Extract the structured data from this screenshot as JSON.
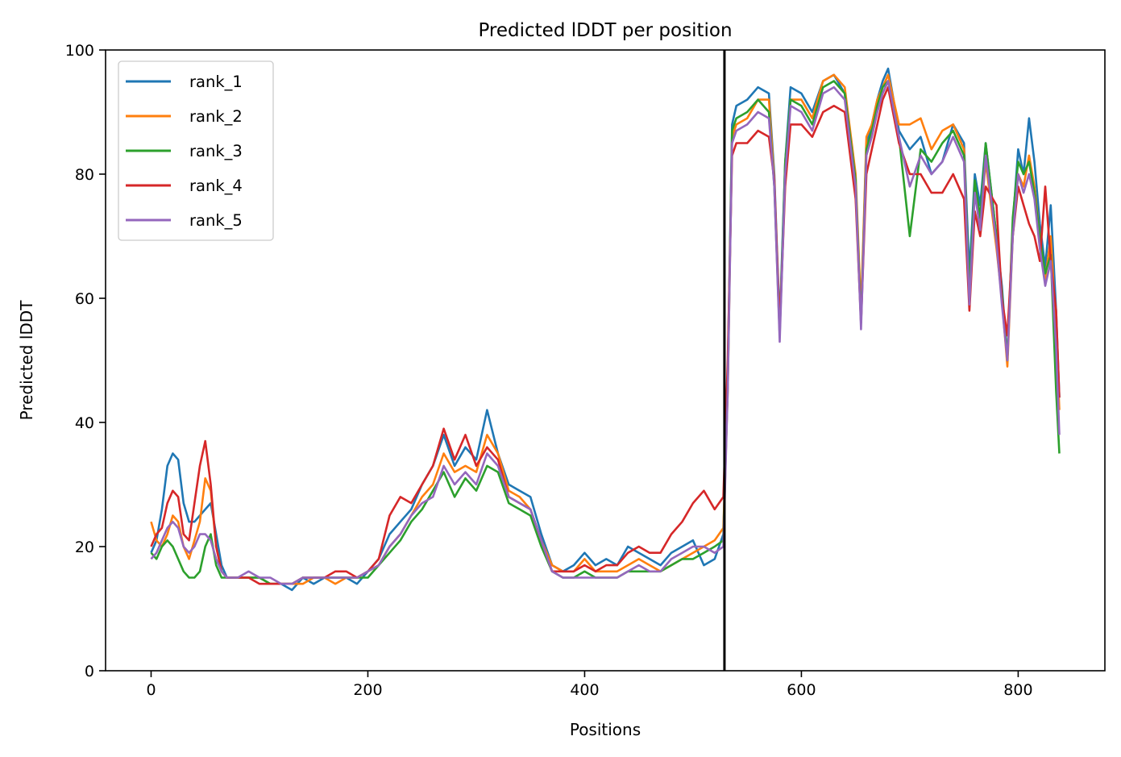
{
  "chart_data": {
    "type": "line",
    "title": "Predicted lDDT per position",
    "xlabel": "Positions",
    "ylabel": "Predicted lDDT",
    "xlim": [
      -42,
      880
    ],
    "ylim": [
      0,
      100
    ],
    "x_ticks": [
      0,
      200,
      400,
      600,
      800
    ],
    "y_ticks": [
      0,
      20,
      40,
      60,
      80,
      100
    ],
    "grid": false,
    "legend_position": "upper-left",
    "vertical_line_x": 529,
    "series": [
      {
        "name": "rank_1",
        "color": "#1f77b4",
        "x": [
          0,
          5,
          10,
          15,
          20,
          25,
          30,
          35,
          40,
          45,
          50,
          55,
          60,
          65,
          70,
          80,
          90,
          100,
          110,
          120,
          130,
          140,
          150,
          160,
          170,
          180,
          190,
          200,
          210,
          220,
          230,
          240,
          250,
          260,
          270,
          280,
          290,
          300,
          310,
          320,
          330,
          340,
          350,
          360,
          370,
          380,
          390,
          400,
          410,
          420,
          430,
          440,
          450,
          460,
          470,
          480,
          490,
          500,
          510,
          520,
          528,
          532,
          536,
          540,
          550,
          560,
          570,
          575,
          580,
          585,
          590,
          600,
          610,
          620,
          630,
          640,
          650,
          655,
          660,
          665,
          670,
          675,
          680,
          690,
          700,
          710,
          720,
          730,
          740,
          750,
          755,
          760,
          765,
          770,
          780,
          785,
          790,
          795,
          800,
          805,
          810,
          815,
          820,
          825,
          830,
          835,
          838
        ],
        "values": [
          19,
          21,
          26,
          33,
          35,
          34,
          27,
          24,
          24,
          25,
          26,
          27,
          22,
          17,
          15,
          15,
          15,
          15,
          14,
          14,
          13,
          15,
          14,
          15,
          15,
          15,
          14,
          16,
          18,
          22,
          24,
          26,
          30,
          33,
          38,
          33,
          36,
          34,
          42,
          35,
          30,
          29,
          28,
          22,
          17,
          16,
          17,
          19,
          17,
          18,
          17,
          20,
          19,
          18,
          17,
          19,
          20,
          21,
          17,
          18,
          22,
          48,
          88,
          91,
          92,
          94,
          93,
          80,
          56,
          82,
          94,
          93,
          90,
          95,
          96,
          93,
          78,
          57,
          85,
          88,
          92,
          95,
          97,
          87,
          84,
          86,
          80,
          82,
          88,
          85,
          64,
          80,
          75,
          85,
          70,
          62,
          50,
          72,
          84,
          80,
          89,
          82,
          72,
          65,
          75,
          58,
          44
        ]
      },
      {
        "name": "rank_2",
        "color": "#ff7f0e",
        "x": [
          0,
          5,
          10,
          15,
          20,
          25,
          30,
          35,
          40,
          45,
          50,
          55,
          60,
          65,
          70,
          80,
          90,
          100,
          110,
          120,
          130,
          140,
          150,
          160,
          170,
          180,
          190,
          200,
          210,
          220,
          230,
          240,
          250,
          260,
          270,
          280,
          290,
          300,
          310,
          320,
          330,
          340,
          350,
          360,
          370,
          380,
          390,
          400,
          410,
          420,
          430,
          440,
          450,
          460,
          470,
          480,
          490,
          500,
          510,
          520,
          528,
          532,
          536,
          540,
          550,
          560,
          570,
          575,
          580,
          585,
          590,
          600,
          610,
          620,
          630,
          640,
          650,
          655,
          660,
          665,
          670,
          675,
          680,
          690,
          700,
          710,
          720,
          730,
          740,
          750,
          755,
          760,
          765,
          770,
          780,
          785,
          790,
          795,
          800,
          805,
          810,
          815,
          820,
          825,
          830,
          835,
          838
        ],
        "values": [
          24,
          21,
          20,
          22,
          25,
          24,
          20,
          18,
          21,
          24,
          31,
          29,
          20,
          16,
          15,
          15,
          15,
          15,
          14,
          14,
          14,
          14,
          15,
          15,
          14,
          15,
          15,
          16,
          17,
          20,
          22,
          25,
          28,
          30,
          35,
          32,
          33,
          32,
          38,
          35,
          29,
          28,
          26,
          21,
          17,
          16,
          16,
          18,
          16,
          16,
          16,
          17,
          18,
          17,
          16,
          17,
          18,
          19,
          20,
          21,
          23,
          45,
          86,
          88,
          89,
          92,
          92,
          79,
          55,
          80,
          92,
          92,
          89,
          95,
          96,
          94,
          80,
          58,
          86,
          88,
          92,
          94,
          96,
          88,
          88,
          89,
          84,
          87,
          88,
          84,
          60,
          78,
          72,
          82,
          68,
          60,
          49,
          70,
          80,
          78,
          83,
          78,
          70,
          63,
          70,
          55,
          42
        ]
      },
      {
        "name": "rank_3",
        "color": "#2ca02c",
        "x": [
          0,
          5,
          10,
          15,
          20,
          25,
          30,
          35,
          40,
          45,
          50,
          55,
          60,
          65,
          70,
          80,
          90,
          100,
          110,
          120,
          130,
          140,
          150,
          160,
          170,
          180,
          190,
          200,
          210,
          220,
          230,
          240,
          250,
          260,
          270,
          280,
          290,
          300,
          310,
          320,
          330,
          340,
          350,
          360,
          370,
          380,
          390,
          400,
          410,
          420,
          430,
          440,
          450,
          460,
          470,
          480,
          490,
          500,
          510,
          520,
          528,
          532,
          536,
          540,
          550,
          560,
          570,
          575,
          580,
          585,
          590,
          600,
          610,
          620,
          630,
          640,
          650,
          655,
          660,
          665,
          670,
          675,
          680,
          690,
          700,
          710,
          720,
          730,
          740,
          750,
          755,
          760,
          765,
          770,
          780,
          785,
          790,
          795,
          800,
          805,
          810,
          815,
          820,
          825,
          830,
          835,
          838
        ],
        "values": [
          19,
          18,
          20,
          21,
          20,
          18,
          16,
          15,
          15,
          16,
          20,
          22,
          17,
          15,
          15,
          15,
          15,
          15,
          14,
          14,
          14,
          15,
          15,
          15,
          15,
          15,
          15,
          15,
          17,
          19,
          21,
          24,
          26,
          29,
          32,
          28,
          31,
          29,
          33,
          32,
          27,
          26,
          25,
          20,
          16,
          15,
          15,
          16,
          15,
          15,
          15,
          16,
          16,
          16,
          16,
          17,
          18,
          18,
          19,
          20,
          21,
          46,
          87,
          89,
          90,
          92,
          90,
          78,
          54,
          82,
          92,
          91,
          88,
          94,
          95,
          93,
          79,
          56,
          84,
          87,
          91,
          94,
          95,
          86,
          70,
          84,
          82,
          85,
          87,
          83,
          61,
          79,
          73,
          85,
          70,
          61,
          50,
          73,
          82,
          80,
          82,
          77,
          70,
          64,
          67,
          45,
          35
        ]
      },
      {
        "name": "rank_4",
        "color": "#d62728",
        "x": [
          0,
          5,
          10,
          15,
          20,
          25,
          30,
          35,
          40,
          45,
          50,
          55,
          60,
          65,
          70,
          80,
          90,
          100,
          110,
          120,
          130,
          140,
          150,
          160,
          170,
          180,
          190,
          200,
          210,
          220,
          230,
          240,
          250,
          260,
          270,
          280,
          290,
          300,
          310,
          320,
          330,
          340,
          350,
          360,
          370,
          380,
          390,
          400,
          410,
          420,
          430,
          440,
          450,
          460,
          470,
          480,
          490,
          500,
          510,
          520,
          528,
          532,
          536,
          540,
          550,
          560,
          570,
          575,
          580,
          585,
          590,
          600,
          610,
          620,
          630,
          640,
          650,
          655,
          660,
          665,
          670,
          675,
          680,
          690,
          700,
          710,
          720,
          730,
          740,
          750,
          755,
          760,
          765,
          770,
          780,
          785,
          790,
          795,
          800,
          805,
          810,
          815,
          820,
          825,
          830,
          835,
          838
        ],
        "values": [
          20,
          22,
          23,
          27,
          29,
          28,
          22,
          21,
          27,
          33,
          37,
          30,
          20,
          16,
          15,
          15,
          15,
          14,
          14,
          14,
          14,
          15,
          15,
          15,
          16,
          16,
          15,
          16,
          18,
          25,
          28,
          27,
          30,
          33,
          39,
          34,
          38,
          33,
          36,
          34,
          28,
          27,
          26,
          21,
          16,
          16,
          16,
          17,
          16,
          17,
          17,
          19,
          20,
          19,
          19,
          22,
          24,
          27,
          29,
          26,
          28,
          50,
          83,
          85,
          85,
          87,
          86,
          79,
          55,
          78,
          88,
          88,
          86,
          90,
          91,
          90,
          76,
          56,
          80,
          84,
          88,
          92,
          94,
          85,
          80,
          80,
          77,
          77,
          80,
          76,
          58,
          74,
          70,
          78,
          75,
          60,
          54,
          70,
          78,
          75,
          72,
          70,
          66,
          78,
          66,
          58,
          44
        ]
      },
      {
        "name": "rank_5",
        "color": "#9467bd",
        "x": [
          0,
          5,
          10,
          15,
          20,
          25,
          30,
          35,
          40,
          45,
          50,
          55,
          60,
          65,
          70,
          80,
          90,
          100,
          110,
          120,
          130,
          140,
          150,
          160,
          170,
          180,
          190,
          200,
          210,
          220,
          230,
          240,
          250,
          260,
          270,
          280,
          290,
          300,
          310,
          320,
          330,
          340,
          350,
          360,
          370,
          380,
          390,
          400,
          410,
          420,
          430,
          440,
          450,
          460,
          470,
          480,
          490,
          500,
          510,
          520,
          528,
          532,
          536,
          540,
          550,
          560,
          570,
          575,
          580,
          585,
          590,
          600,
          610,
          620,
          630,
          640,
          650,
          655,
          660,
          665,
          670,
          675,
          680,
          690,
          700,
          710,
          720,
          730,
          740,
          750,
          755,
          760,
          765,
          770,
          780,
          785,
          790,
          795,
          800,
          805,
          810,
          815,
          820,
          825,
          830,
          835,
          838
        ],
        "values": [
          18,
          19,
          21,
          23,
          24,
          23,
          20,
          19,
          20,
          22,
          22,
          21,
          18,
          16,
          15,
          15,
          16,
          15,
          15,
          14,
          14,
          15,
          15,
          15,
          15,
          15,
          15,
          16,
          17,
          20,
          22,
          25,
          27,
          28,
          33,
          30,
          32,
          30,
          35,
          33,
          28,
          27,
          26,
          21,
          16,
          15,
          15,
          15,
          15,
          15,
          15,
          16,
          17,
          16,
          16,
          18,
          19,
          20,
          20,
          19,
          20,
          45,
          85,
          87,
          88,
          90,
          89,
          78,
          53,
          80,
          91,
          90,
          87,
          93,
          94,
          92,
          78,
          55,
          83,
          86,
          90,
          93,
          95,
          86,
          78,
          83,
          80,
          82,
          86,
          82,
          59,
          77,
          71,
          83,
          69,
          59,
          50,
          70,
          80,
          77,
          80,
          76,
          68,
          62,
          66,
          52,
          38
        ]
      }
    ]
  }
}
